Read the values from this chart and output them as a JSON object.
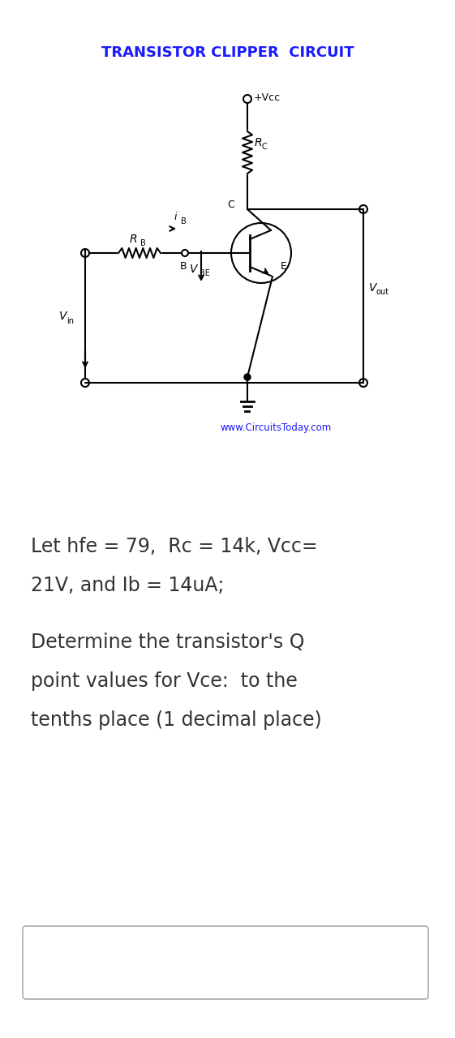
{
  "title": "TRANSISTOR CLIPPER  CIRCUIT",
  "title_color": "#1a1aff",
  "title_fontsize": 13,
  "bg_color": "#ffffff",
  "text_color": "#000000",
  "line1": "Let hfe = 79,  Rc = 14k, Vcc=",
  "line2": "21V, and Ib = 14uA;",
  "line3": "Determine the transistor's Q",
  "line4": "point values for Vce:  to the",
  "line5": "tenths place (1 decimal place)",
  "website": "www.CircuitsToday.com",
  "website_color": "#1a1aff",
  "circuit_line_color": "#000000",
  "label_Vcc": "+Vcc",
  "label_Rc": "R",
  "label_Rc_sub": "C",
  "label_C": "C",
  "label_RB": "R",
  "label_RB_sub": "B",
  "label_iB": "i",
  "label_iB_sub": "B",
  "label_B": "B",
  "label_VBE": "V",
  "label_VBE_sub": "BE",
  "label_Vout": "V",
  "label_Vout_sub": "out",
  "label_Vin": "V",
  "label_Vin_sub": "in",
  "label_E": "E"
}
